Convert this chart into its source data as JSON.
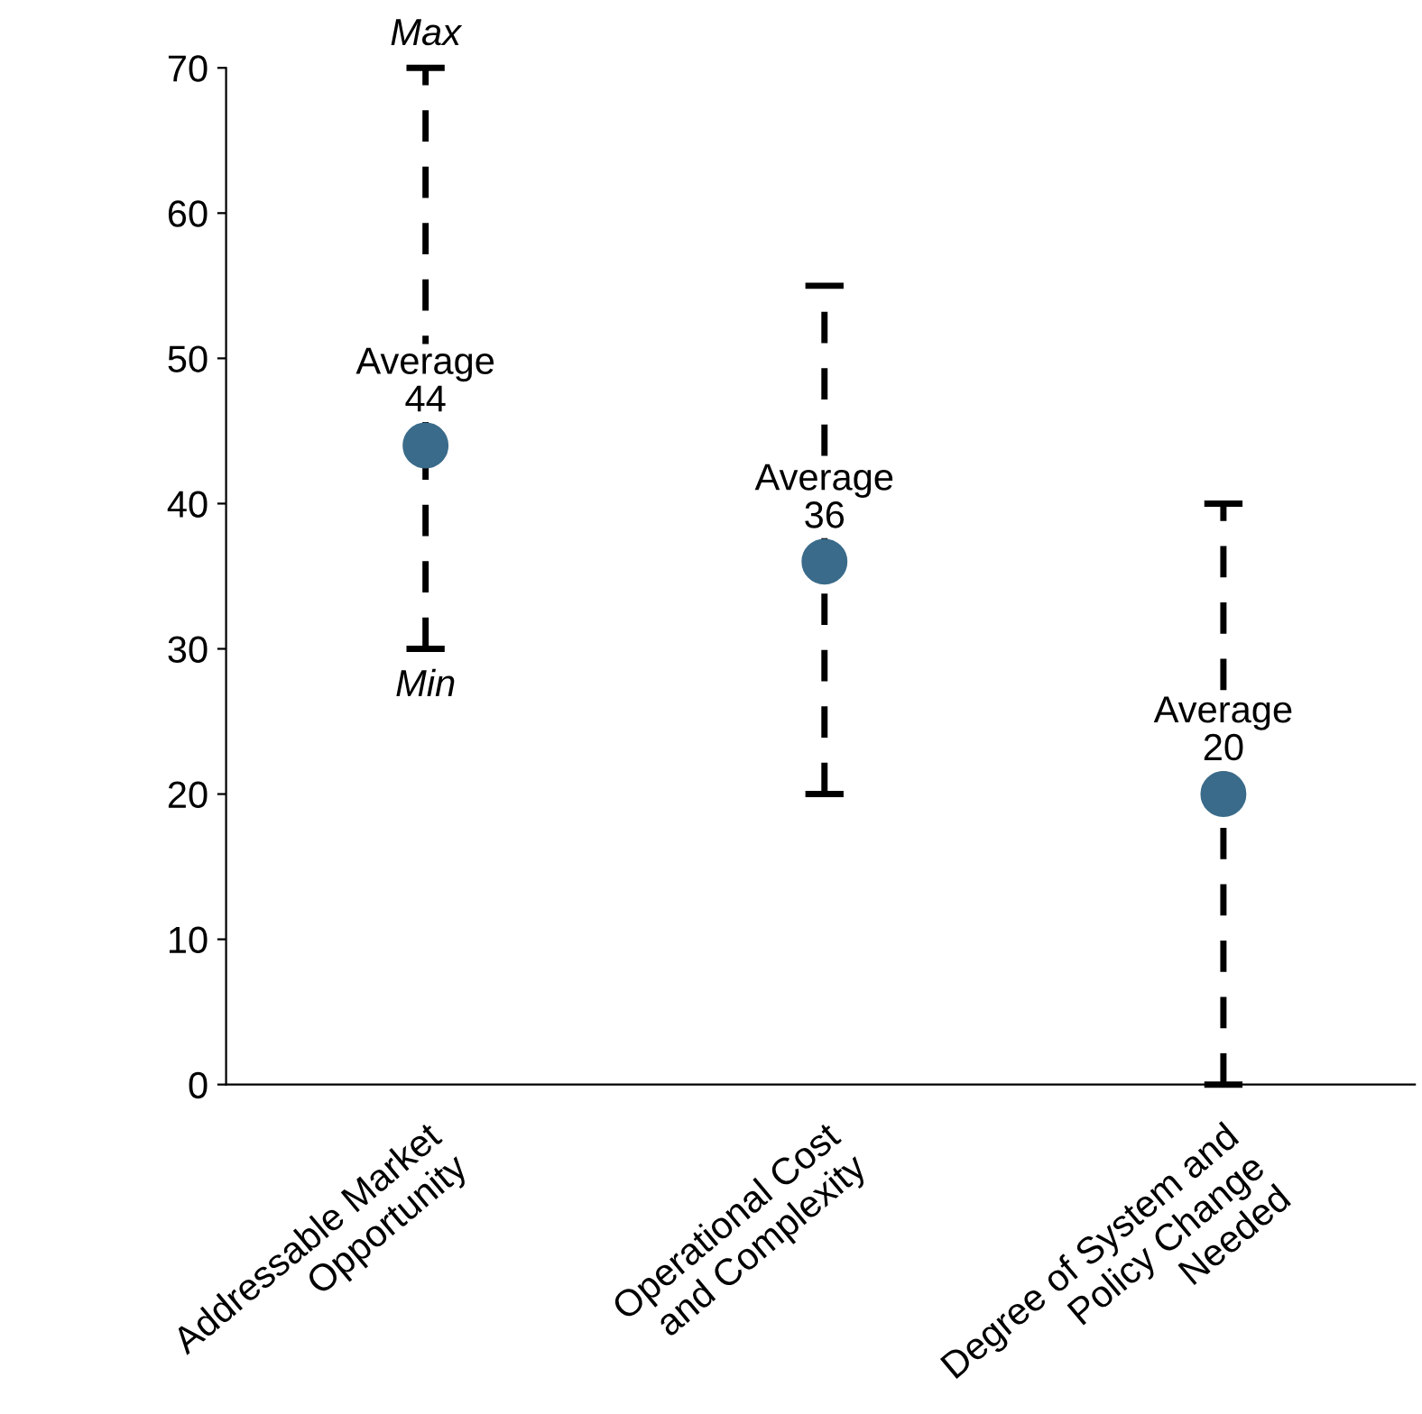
{
  "chart_data": {
    "type": "scatter",
    "categories": [
      "Addressable Market\nOpportunity",
      "Operational Cost\nand Complexity",
      "Degree of System and\nPolicy Change\nNeeded"
    ],
    "values": [
      44,
      36,
      20
    ],
    "value_labels": [
      "Average\n44",
      "Average\n36",
      "Average\n20"
    ],
    "errors": [
      [
        30,
        70
      ],
      [
        20,
        55
      ],
      [
        0,
        40
      ]
    ],
    "color": "#3a6b8a",
    "marker": "circle",
    "line_style": "dashed",
    "ylim": [
      0,
      70
    ],
    "yticks": [
      0,
      10,
      20,
      30,
      40,
      50,
      60,
      70
    ],
    "grid": false,
    "legend": false,
    "annotations": [
      "Max",
      "Min"
    ]
  }
}
